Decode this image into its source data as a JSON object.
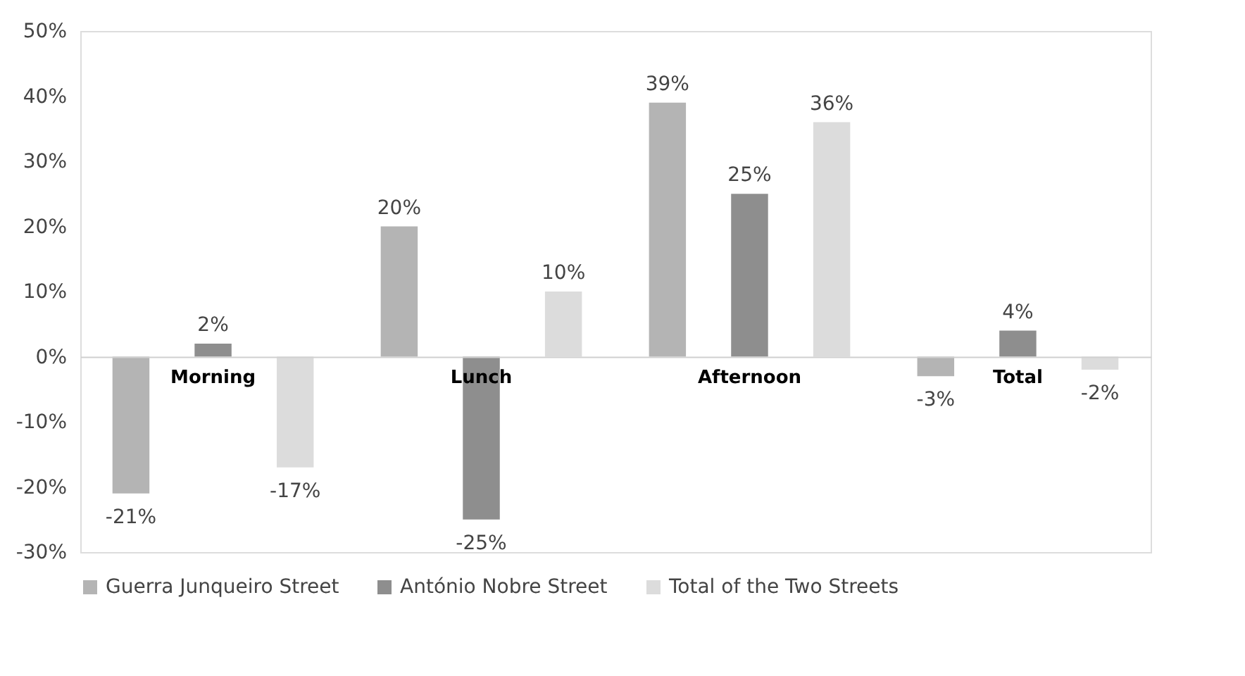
{
  "chart_data": {
    "type": "bar",
    "categories": [
      "Morning",
      "Lunch",
      "Afternoon",
      "Total"
    ],
    "series": [
      {
        "name": "Guerra Junqueiro Street",
        "color": "#b4b4b4",
        "values": [
          -21,
          20,
          39,
          -3
        ],
        "value_labels": [
          "-21%",
          "20%",
          "39%",
          "-3%"
        ]
      },
      {
        "name": "António Nobre Street",
        "color": "#8e8e8e",
        "values": [
          2,
          -25,
          25,
          4
        ],
        "value_labels": [
          "2%",
          "-25%",
          "25%",
          "4%"
        ]
      },
      {
        "name": "Total of the Two Streets",
        "color": "#dcdcdc",
        "values": [
          -17,
          10,
          36,
          -2
        ],
        "value_labels": [
          "-17%",
          "10%",
          "36%",
          "-2%"
        ]
      }
    ],
    "ylim": [
      -30,
      50
    ],
    "yticks": [
      {
        "value": -30,
        "label": "-30%"
      },
      {
        "value": -20,
        "label": "-20%"
      },
      {
        "value": -10,
        "label": "-10%"
      },
      {
        "value": 0,
        "label": "0%"
      },
      {
        "value": 10,
        "label": "10%"
      },
      {
        "value": 20,
        "label": "20%"
      },
      {
        "value": 30,
        "label": "30%"
      },
      {
        "value": 40,
        "label": "40%"
      },
      {
        "value": 50,
        "label": "50%"
      }
    ],
    "grid": false,
    "legend": "bottom"
  }
}
